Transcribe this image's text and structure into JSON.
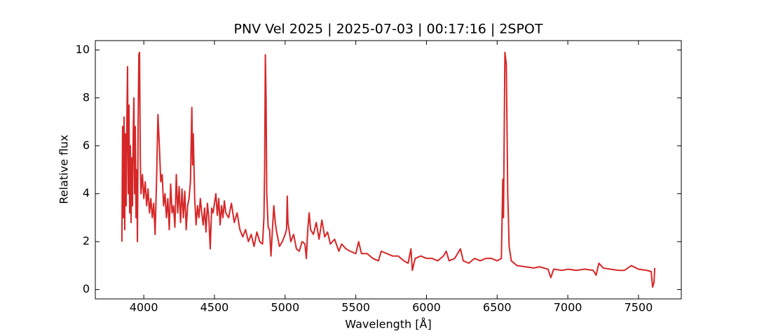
{
  "chart_data": {
    "type": "line",
    "title": "PNV Vel 2025 | 2025-07-03 | 00:17:16 | 2SPOT",
    "x_label": "Wavelength [Å]",
    "y_label": "Relative flux",
    "xlim": [
      3657,
      7803
    ],
    "ylim": [
      -0.39,
      10.39
    ],
    "xticks": [
      4000,
      4500,
      5000,
      5500,
      6000,
      6500,
      7000,
      7500
    ],
    "yticks": [
      0,
      2,
      4,
      6,
      8,
      10
    ],
    "series": [
      {
        "name": "PNV Vel 2025",
        "color": "#d62728",
        "x": [
          3845,
          3850,
          3855,
          3860,
          3865,
          3870,
          3875,
          3880,
          3885,
          3890,
          3895,
          3900,
          3905,
          3910,
          3915,
          3920,
          3925,
          3930,
          3935,
          3940,
          3945,
          3950,
          3955,
          3960,
          3965,
          3970,
          3975,
          3980,
          3990,
          4000,
          4010,
          4020,
          4030,
          4040,
          4050,
          4060,
          4070,
          4080,
          4090,
          4100,
          4110,
          4120,
          4130,
          4140,
          4150,
          4160,
          4170,
          4180,
          4190,
          4200,
          4210,
          4220,
          4230,
          4240,
          4250,
          4260,
          4270,
          4280,
          4290,
          4300,
          4310,
          4320,
          4330,
          4340,
          4345,
          4350,
          4360,
          4370,
          4380,
          4390,
          4400,
          4410,
          4420,
          4430,
          4440,
          4450,
          4460,
          4470,
          4480,
          4490,
          4500,
          4510,
          4520,
          4530,
          4540,
          4550,
          4560,
          4570,
          4580,
          4600,
          4620,
          4640,
          4660,
          4680,
          4700,
          4720,
          4740,
          4760,
          4780,
          4800,
          4820,
          4840,
          4850,
          4855,
          4860,
          4865,
          4870,
          4880,
          4890,
          4900,
          4910,
          4920,
          4930,
          4940,
          4960,
          4980,
          5000,
          5010,
          5015,
          5020,
          5040,
          5060,
          5080,
          5100,
          5120,
          5140,
          5150,
          5160,
          5170,
          5180,
          5200,
          5220,
          5240,
          5260,
          5280,
          5300,
          5320,
          5350,
          5380,
          5400,
          5430,
          5460,
          5500,
          5520,
          5540,
          5580,
          5620,
          5660,
          5680,
          5720,
          5760,
          5800,
          5840,
          5870,
          5890,
          5900,
          5920,
          5960,
          6000,
          6040,
          6080,
          6120,
          6140,
          6160,
          6200,
          6240,
          6260,
          6300,
          6340,
          6380,
          6420,
          6460,
          6500,
          6530,
          6540,
          6545,
          6555,
          6565,
          6575,
          6585,
          6600,
          6640,
          6700,
          6760,
          6800,
          6860,
          6880,
          6900,
          6960,
          7000,
          7060,
          7120,
          7180,
          7200,
          7220,
          7250,
          7300,
          7360,
          7400,
          7450,
          7500,
          7560,
          7590,
          7600,
          7610,
          7615
        ],
        "values": [
          2.0,
          6.8,
          3.0,
          7.2,
          2.5,
          6.5,
          3.5,
          7.0,
          9.3,
          4.0,
          7.7,
          3.2,
          6.0,
          2.8,
          5.5,
          3.5,
          6.5,
          8.0,
          4.0,
          6.8,
          3.0,
          5.0,
          2.0,
          7.0,
          9.8,
          9.9,
          5.5,
          4.0,
          4.8,
          3.8,
          4.5,
          3.5,
          4.2,
          3.2,
          3.8,
          3.0,
          3.6,
          2.3,
          4.5,
          7.3,
          6.0,
          4.5,
          4.8,
          3.5,
          4.0,
          3.0,
          3.8,
          2.5,
          4.4,
          3.2,
          3.5,
          2.6,
          4.8,
          3.2,
          4.3,
          2.8,
          4.2,
          3.0,
          4.1,
          2.5,
          3.5,
          3.8,
          4.5,
          7.6,
          5.2,
          6.5,
          3.8,
          2.7,
          3.5,
          3.0,
          3.8,
          3.2,
          2.7,
          3.4,
          2.4,
          3.6,
          3.0,
          1.7,
          3.4,
          3.2,
          3.6,
          4.0,
          3.1,
          3.8,
          2.7,
          3.5,
          3.0,
          3.7,
          3.2,
          3.0,
          3.6,
          2.8,
          3.2,
          2.5,
          2.2,
          2.5,
          2.0,
          2.3,
          1.8,
          2.4,
          2.0,
          1.9,
          3.0,
          5.0,
          9.8,
          8.0,
          4.0,
          2.6,
          2.5,
          1.4,
          2.5,
          3.5,
          2.8,
          2.4,
          1.8,
          2.0,
          2.3,
          2.5,
          3.9,
          2.8,
          2.0,
          2.3,
          1.7,
          1.6,
          2.0,
          1.9,
          1.3,
          2.5,
          3.2,
          2.5,
          2.3,
          2.8,
          2.1,
          2.9,
          2.2,
          2.4,
          1.9,
          2.1,
          1.6,
          1.9,
          1.7,
          1.6,
          1.5,
          2.0,
          1.5,
          1.5,
          1.3,
          1.2,
          1.6,
          1.5,
          1.4,
          1.4,
          1.2,
          1.1,
          1.7,
          0.8,
          1.3,
          1.4,
          1.3,
          1.3,
          1.2,
          1.4,
          1.6,
          1.2,
          1.3,
          1.7,
          1.2,
          1.1,
          1.3,
          1.2,
          1.3,
          1.3,
          1.2,
          1.3,
          4.6,
          3.0,
          9.9,
          9.4,
          4.0,
          1.8,
          1.2,
          1.0,
          0.95,
          0.9,
          0.95,
          0.85,
          0.5,
          0.85,
          0.8,
          0.85,
          0.8,
          0.85,
          0.8,
          0.6,
          1.1,
          0.9,
          0.85,
          0.8,
          0.8,
          1.0,
          0.85,
          0.8,
          0.75,
          0.1,
          0.3,
          0.9
        ]
      }
    ]
  }
}
